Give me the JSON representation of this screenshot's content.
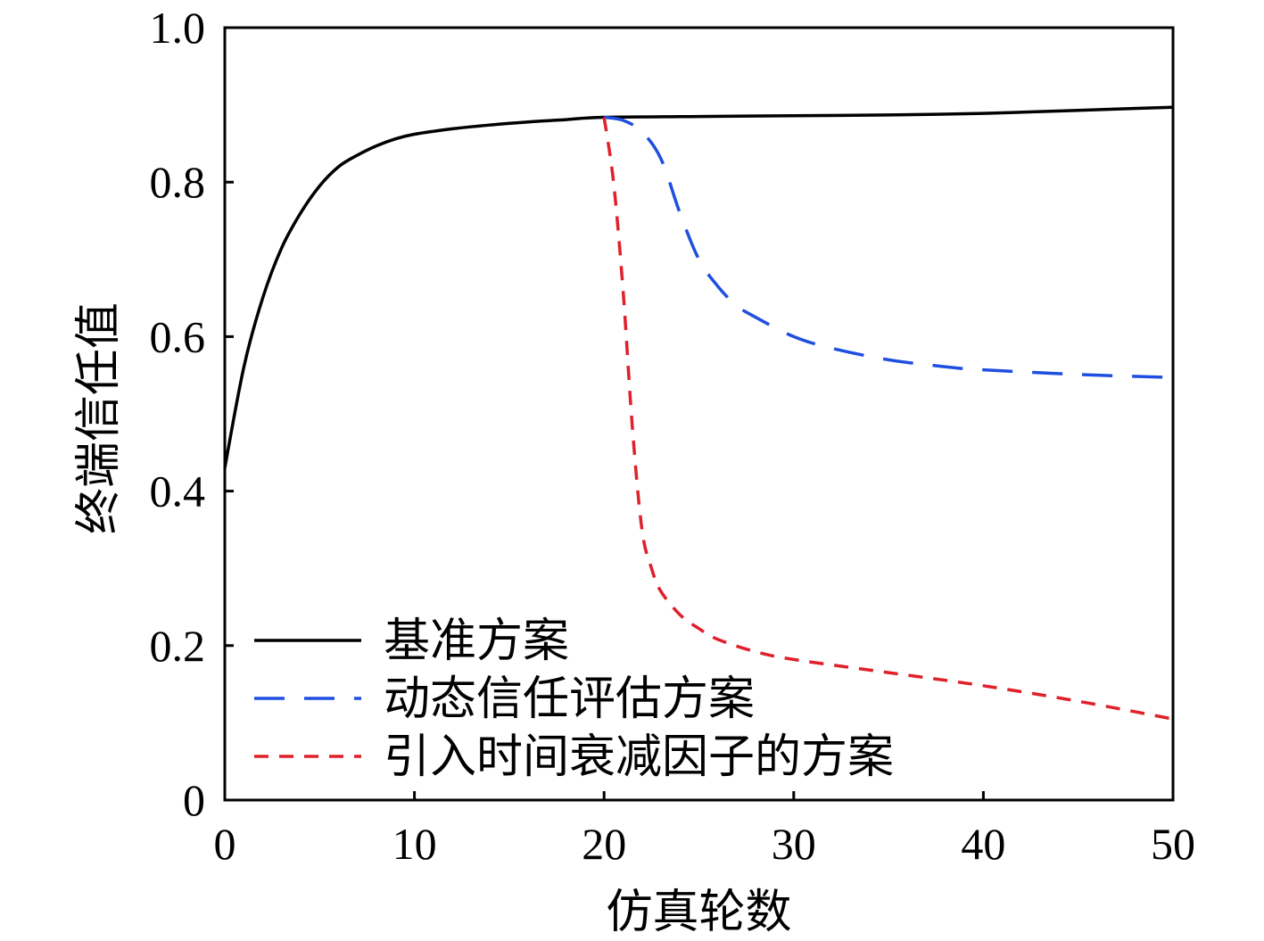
{
  "chart_data": {
    "type": "line",
    "title": "",
    "xlabel": "仿真轮数",
    "ylabel": "终端信任值",
    "xlim": [
      0,
      50
    ],
    "ylim": [
      0,
      1.0
    ],
    "xticks": [
      0,
      10,
      20,
      30,
      40,
      50
    ],
    "xtick_labels": [
      "0",
      "10",
      "20",
      "30",
      "40",
      "50"
    ],
    "yticks": [
      0,
      0.2,
      0.4,
      0.6,
      0.8,
      1.0
    ],
    "ytick_labels": [
      "0",
      "0.2",
      "0.4",
      "0.6",
      "0.8",
      "1.0"
    ],
    "grid": false,
    "legend_position": "bottom-left",
    "series": [
      {
        "name": "基准方案",
        "color": "#000000",
        "dash": "solid",
        "x": [
          0,
          1,
          2,
          3,
          4,
          5,
          6,
          7,
          8,
          9,
          10,
          12,
          14,
          16,
          18,
          20,
          25,
          30,
          35,
          40,
          45,
          50
        ],
        "y": [
          0.43,
          0.56,
          0.65,
          0.715,
          0.76,
          0.795,
          0.82,
          0.835,
          0.847,
          0.856,
          0.862,
          0.869,
          0.874,
          0.878,
          0.881,
          0.884,
          0.885,
          0.886,
          0.887,
          0.889,
          0.893,
          0.897
        ]
      },
      {
        "name": "动态信任评估方案",
        "color": "#1f4fe0",
        "dash": "long-dash",
        "x": [
          20,
          21,
          22,
          23,
          24,
          25,
          26,
          27,
          28,
          30,
          32,
          35,
          38,
          40,
          45,
          50
        ],
        "y": [
          0.884,
          0.88,
          0.865,
          0.83,
          0.76,
          0.7,
          0.665,
          0.64,
          0.625,
          0.6,
          0.585,
          0.57,
          0.561,
          0.557,
          0.551,
          0.547
        ]
      },
      {
        "name": "引入时间衰减因子的方案",
        "color": "#e0202a",
        "dash": "short-dash",
        "x": [
          20,
          20.5,
          21,
          21.5,
          22,
          22.5,
          23,
          24,
          25,
          26,
          28,
          30,
          35,
          40,
          45,
          50
        ],
        "y": [
          0.884,
          0.8,
          0.66,
          0.48,
          0.35,
          0.3,
          0.27,
          0.24,
          0.222,
          0.208,
          0.192,
          0.182,
          0.165,
          0.148,
          0.128,
          0.105
        ]
      }
    ]
  }
}
